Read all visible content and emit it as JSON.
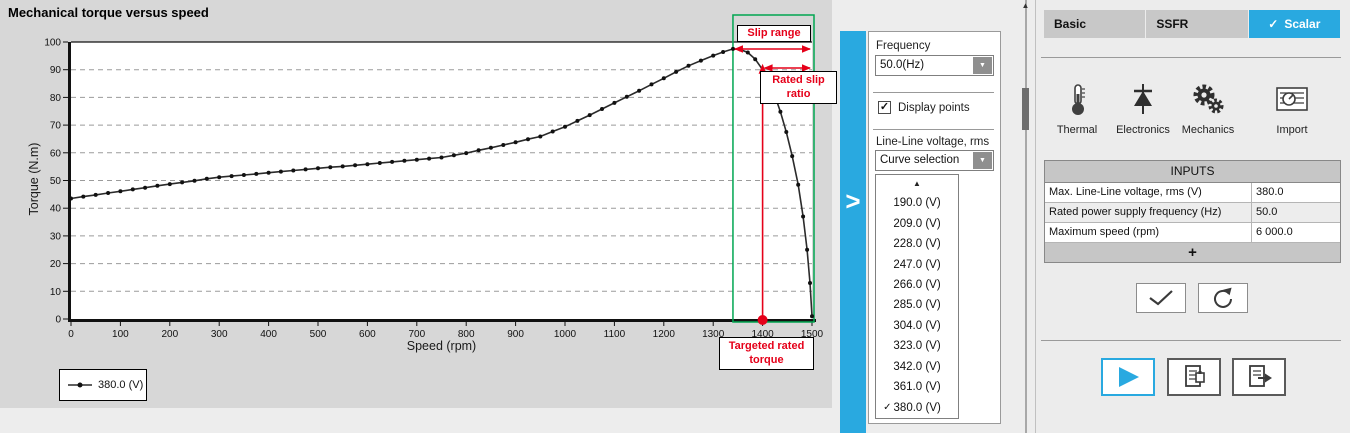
{
  "chart_data": {
    "type": "line",
    "title": "Mechanical torque versus speed",
    "xlabel": "Speed (rpm)",
    "ylabel": "Torque (N.m)",
    "xlim": [
      0,
      1500
    ],
    "ylim": [
      0,
      100
    ],
    "x_tick_step": 100,
    "y_tick_step": 10,
    "grid": "horizontal dashed",
    "legend_position": "bottom-left",
    "series": [
      {
        "name": "380.0 (V)",
        "color": "#2b2b2b",
        "marker": "dot",
        "points": [
          [
            0,
            43.5
          ],
          [
            25,
            44.2
          ],
          [
            50,
            44.8
          ],
          [
            75,
            45.5
          ],
          [
            100,
            46.1
          ],
          [
            125,
            46.8
          ],
          [
            150,
            47.4
          ],
          [
            175,
            48.1
          ],
          [
            200,
            48.7
          ],
          [
            225,
            49.3
          ],
          [
            250,
            49.9
          ],
          [
            275,
            50.6
          ],
          [
            300,
            51.2
          ],
          [
            325,
            51.6
          ],
          [
            350,
            52.0
          ],
          [
            375,
            52.4
          ],
          [
            400,
            52.8
          ],
          [
            425,
            53.2
          ],
          [
            450,
            53.6
          ],
          [
            475,
            54.0
          ],
          [
            500,
            54.4
          ],
          [
            525,
            54.8
          ],
          [
            550,
            55.1
          ],
          [
            575,
            55.5
          ],
          [
            600,
            55.9
          ],
          [
            625,
            56.3
          ],
          [
            650,
            56.7
          ],
          [
            675,
            57.1
          ],
          [
            700,
            57.5
          ],
          [
            725,
            57.9
          ],
          [
            750,
            58.3
          ],
          [
            775,
            59.1
          ],
          [
            800,
            59.9
          ],
          [
            825,
            60.9
          ],
          [
            850,
            61.8
          ],
          [
            875,
            62.8
          ],
          [
            900,
            63.8
          ],
          [
            925,
            64.9
          ],
          [
            950,
            65.9
          ],
          [
            975,
            67.7
          ],
          [
            1000,
            69.4
          ],
          [
            1025,
            71.5
          ],
          [
            1050,
            73.6
          ],
          [
            1075,
            75.8
          ],
          [
            1100,
            78.0
          ],
          [
            1125,
            80.2
          ],
          [
            1150,
            82.4
          ],
          [
            1175,
            84.7
          ],
          [
            1200,
            86.9
          ],
          [
            1225,
            89.2
          ],
          [
            1250,
            91.4
          ],
          [
            1275,
            93.3
          ],
          [
            1300,
            95.1
          ],
          [
            1320,
            96.4
          ],
          [
            1340,
            97.5
          ],
          [
            1355,
            97.3
          ],
          [
            1370,
            96.2
          ],
          [
            1385,
            93.8
          ],
          [
            1400,
            90.0
          ],
          [
            1412,
            86.0
          ],
          [
            1424,
            81.0
          ],
          [
            1436,
            74.8
          ],
          [
            1448,
            67.5
          ],
          [
            1460,
            58.8
          ],
          [
            1472,
            48.5
          ],
          [
            1482,
            37.0
          ],
          [
            1490,
            25.0
          ],
          [
            1496,
            13.0
          ],
          [
            1500,
            1.0
          ]
        ]
      }
    ],
    "annotations": {
      "slip_range": {
        "label": "Slip range",
        "x_from": 1340,
        "x_to": 1500
      },
      "rated_slip_ratio": {
        "label": "Rated slip ratio",
        "x_from": 1400,
        "x_to": 1500
      },
      "targeted_rated_torque": {
        "label": "Targeted rated torque",
        "x": 1400
      },
      "rated_point": {
        "x": 1400,
        "torque": 90
      },
      "highlight_box": {
        "x_from": 1340,
        "x_to": 1500,
        "color": "#00a651"
      },
      "annotation_color": "#e50019"
    }
  },
  "controls": {
    "frequency_label": "Frequency",
    "frequency_value": "50.0(Hz)",
    "display_points_label": "Display points",
    "display_points_checked": true,
    "voltage_label": "Line-Line voltage, rms",
    "voltage_value": "Curve selection",
    "voltage_options": [
      "190.0 (V)",
      "209.0 (V)",
      "228.0 (V)",
      "247.0 (V)",
      "266.0 (V)",
      "285.0 (V)",
      "304.0 (V)",
      "323.0 (V)",
      "342.0 (V)",
      "361.0 (V)",
      "380.0 (V)"
    ],
    "voltage_selected": "380.0 (V)"
  },
  "right_panel": {
    "tabs": [
      {
        "label": "Basic",
        "selected": false
      },
      {
        "label": "SSFR",
        "selected": false
      },
      {
        "label": "Scalar",
        "selected": true
      }
    ],
    "toolbar": [
      {
        "label": "Thermal",
        "icon": "thermometer-icon"
      },
      {
        "label": "Electronics",
        "icon": "diode-icon"
      },
      {
        "label": "Mechanics",
        "icon": "gears-icon"
      },
      {
        "label": "Import",
        "icon": "datasheet-icon"
      }
    ],
    "inputs": {
      "header": "INPUTS",
      "rows": [
        {
          "label": "Max. Line-Line voltage, rms (V)",
          "value": "380.0"
        },
        {
          "label": "Rated power supply frequency (Hz)",
          "value": "50.0"
        },
        {
          "label": "Maximum speed (rpm)",
          "value": "6 000.0"
        }
      ],
      "add_button": "+"
    }
  },
  "glyphs": {
    "check": "✓",
    "dropdown_arrow": "▼",
    "scroll_up_arrow": "▲",
    "expand_chevron": ">"
  },
  "accent": {
    "blue": "#29a9e0",
    "green": "#00a651",
    "red": "#e50019"
  }
}
